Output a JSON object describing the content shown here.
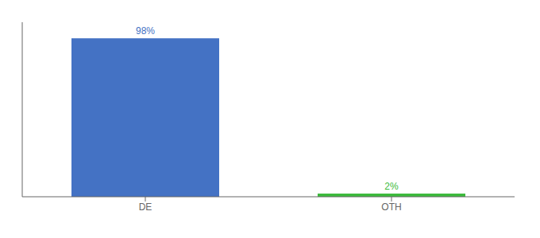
{
  "chart_data": {
    "type": "bar",
    "categories": [
      "DE",
      "OTH"
    ],
    "values": [
      98,
      2
    ],
    "value_labels": [
      "98%",
      "2%"
    ],
    "colors": [
      "#4472c4",
      "#3dbb3d"
    ],
    "ylim": [
      0,
      108
    ],
    "data_labels": true,
    "tick_labels": "x"
  }
}
